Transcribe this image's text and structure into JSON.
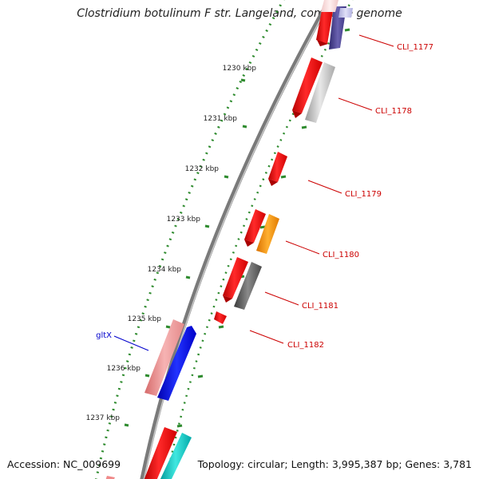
{
  "title": "Clostridium botulinum F str. Langeland, complete genome",
  "footer": {
    "accession": "Accession: NC_009699",
    "summary": "Topology: circular; Length: 3,995,387 bp; Genes: 3,781"
  },
  "colors": {
    "backbone": "#8a8a8a",
    "ticks": "#2e8b2e",
    "gene_label": "#cc0000",
    "glt_label": "#0000cc",
    "label_text": "#222222"
  },
  "scale_labels": [
    "1230 kbp",
    "1231 kbp",
    "1232 kbp",
    "1233 kbp",
    "1234 kbp",
    "1235 kbp",
    "1236 kbp",
    "1237 kbp"
  ],
  "gene_labels": [
    {
      "text": "CLI_1177",
      "color": "#cc0000"
    },
    {
      "text": "CLI_1178",
      "color": "#cc0000"
    },
    {
      "text": "CLI_1179",
      "color": "#cc0000"
    },
    {
      "text": "CLI_1180",
      "color": "#cc0000"
    },
    {
      "text": "CLI_1181",
      "color": "#cc0000"
    },
    {
      "text": "CLI_1182",
      "color": "#cc0000"
    },
    {
      "text": "gltX",
      "color": "#0000cc"
    }
  ]
}
